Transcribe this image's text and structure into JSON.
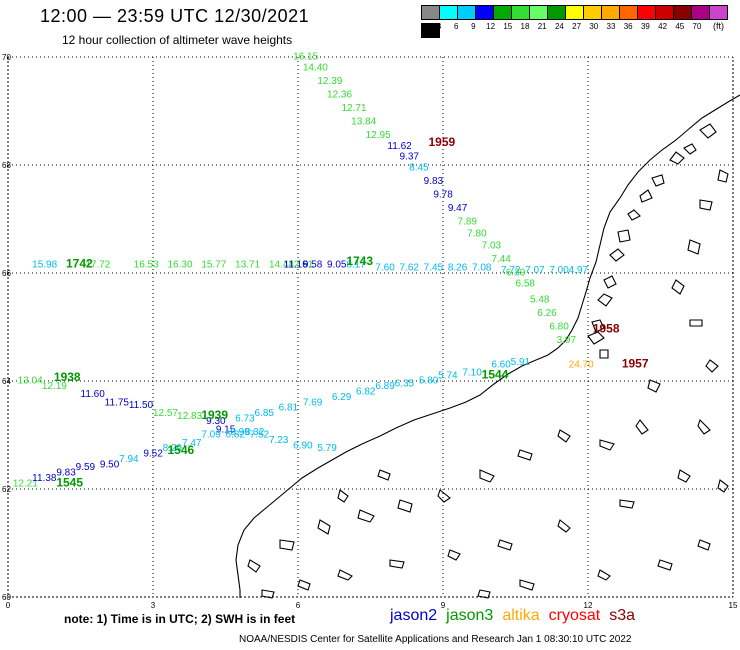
{
  "header": {
    "title": "12:00 — 23:59 UTC 12/30/2021",
    "subtitle": "12 hour collection of altimeter wave heights"
  },
  "legend": {
    "colors": [
      "#888888",
      "#00ffff",
      "#00ccff",
      "#0000ff",
      "#00aa00",
      "#33dd33",
      "#66ff66",
      "#009900",
      "#ffff00",
      "#ffcc00",
      "#ffaa00",
      "#ff6600",
      "#ff0000",
      "#cc0000",
      "#880000",
      "#aa0088",
      "#cc44cc",
      "#000000"
    ],
    "labels": [
      "3",
      "6",
      "9",
      "12",
      "15",
      "18",
      "21",
      "24",
      "27",
      "30",
      "33",
      "36",
      "39",
      "42",
      "45",
      "70"
    ],
    "unit": "(ft)"
  },
  "axes": {
    "x_ticks": [
      "0",
      "3",
      "6",
      "9",
      "12",
      "15"
    ],
    "y_ticks": [
      "70",
      "68",
      "66",
      "64",
      "62",
      "60"
    ],
    "x_range": [
      0,
      15
    ],
    "y_range": [
      60,
      70
    ]
  },
  "tracks": [
    {
      "name": "t1",
      "color": "#33dd33",
      "points": [
        {
          "lon": 5.9,
          "lat": 69.95,
          "v": "16.15"
        },
        {
          "lon": 6.1,
          "lat": 69.75,
          "v": "14.40"
        },
        {
          "lon": 6.4,
          "lat": 69.5,
          "v": "12.39"
        },
        {
          "lon": 6.6,
          "lat": 69.25,
          "v": "12.36"
        },
        {
          "lon": 6.9,
          "lat": 69.0,
          "v": "12.71"
        },
        {
          "lon": 7.1,
          "lat": 68.75,
          "v": "13.84"
        },
        {
          "lon": 7.4,
          "lat": 68.5,
          "v": "12.95"
        },
        {
          "lon": 7.85,
          "lat": 68.3,
          "v": "11.62",
          "c": "#0000cc"
        },
        {
          "lon": 8.1,
          "lat": 68.1,
          "v": "9.37",
          "c": "#0000cc"
        },
        {
          "lon": 8.3,
          "lat": 67.9,
          "v": "8.45",
          "c": "#00bbee"
        },
        {
          "lon": 8.6,
          "lat": 67.65,
          "v": "9.83",
          "c": "#0000cc"
        },
        {
          "lon": 8.8,
          "lat": 67.4,
          "v": "9.78",
          "c": "#0000cc"
        },
        {
          "lon": 9.1,
          "lat": 67.15,
          "v": "9.47",
          "c": "#0000cc"
        },
        {
          "lon": 9.3,
          "lat": 66.9,
          "v": "7.89"
        },
        {
          "lon": 9.5,
          "lat": 66.68,
          "v": "7.80"
        },
        {
          "lon": 9.8,
          "lat": 66.45,
          "v": "7.03"
        },
        {
          "lon": 10.0,
          "lat": 66.2,
          "v": "7.44"
        },
        {
          "lon": 10.3,
          "lat": 65.95,
          "v": "6.39"
        },
        {
          "lon": 10.5,
          "lat": 65.75,
          "v": "6.58"
        },
        {
          "lon": 10.8,
          "lat": 65.45,
          "v": "5.48"
        },
        {
          "lon": 10.95,
          "lat": 65.2,
          "v": "6.26"
        },
        {
          "lon": 11.2,
          "lat": 64.95,
          "v": "6.80"
        },
        {
          "lon": 11.35,
          "lat": 64.7,
          "v": "3.97"
        }
      ],
      "pass": {
        "lon": 8.7,
        "lat": 68.35,
        "v": "1959",
        "c": "#880000"
      }
    },
    {
      "name": "t2",
      "color": "#00bbee",
      "points": [
        {
          "lon": 0.5,
          "lat": 66.1,
          "v": "15.98"
        },
        {
          "lon": 1.6,
          "lat": 66.1,
          "v": "17.72",
          "c": "#33dd33"
        },
        {
          "lon": 2.6,
          "lat": 66.1,
          "v": "16.53",
          "c": "#33dd33"
        },
        {
          "lon": 3.3,
          "lat": 66.1,
          "v": "16.30",
          "c": "#33dd33"
        },
        {
          "lon": 4.0,
          "lat": 66.1,
          "v": "15.77",
          "c": "#33dd33"
        },
        {
          "lon": 4.7,
          "lat": 66.1,
          "v": "13.71",
          "c": "#33dd33"
        },
        {
          "lon": 5.4,
          "lat": 66.1,
          "v": "14.44",
          "c": "#33dd33"
        },
        {
          "lon": 5.8,
          "lat": 66.1,
          "v": "12.51",
          "c": "#33dd33"
        },
        {
          "lon": 5.4,
          "lat": 66.1,
          "v": "11.16",
          "c": "#0000cc",
          "dx": 0.3
        },
        {
          "lon": 6.1,
          "lat": 66.1,
          "v": "9.58",
          "c": "#0000cc"
        },
        {
          "lon": 6.6,
          "lat": 66.1,
          "v": "9.05",
          "c": "#0000cc"
        },
        {
          "lon": 7.0,
          "lat": 66.1,
          "v": "8.17"
        },
        {
          "lon": 7.6,
          "lat": 66.05,
          "v": "7.60"
        },
        {
          "lon": 8.1,
          "lat": 66.05,
          "v": "7.62"
        },
        {
          "lon": 8.6,
          "lat": 66.05,
          "v": "7.45"
        },
        {
          "lon": 9.1,
          "lat": 66.05,
          "v": "8.26"
        },
        {
          "lon": 9.6,
          "lat": 66.05,
          "v": "7.08"
        },
        {
          "lon": 10.2,
          "lat": 66.0,
          "v": "7.72"
        },
        {
          "lon": 10.7,
          "lat": 66.0,
          "v": "7.07"
        },
        {
          "lon": 11.2,
          "lat": 66.0,
          "v": "7.00"
        },
        {
          "lon": 11.6,
          "lat": 66.0,
          "v": "4.97"
        }
      ],
      "pass": {
        "lon": 7.0,
        "lat": 66.15,
        "v": "1743",
        "c": "#009900"
      },
      "pass2": {
        "lon": 1.2,
        "lat": 66.1,
        "v": "1742",
        "c": "#009900"
      }
    },
    {
      "name": "t3",
      "color": "#33dd33",
      "points": [
        {
          "lon": 0.2,
          "lat": 63.95,
          "v": "13.04"
        },
        {
          "lon": 0.7,
          "lat": 63.85,
          "v": "12.19"
        },
        {
          "lon": 1.5,
          "lat": 63.7,
          "v": "11.60",
          "c": "#0000cc"
        },
        {
          "lon": 2.0,
          "lat": 63.55,
          "v": "11.75",
          "c": "#0000cc"
        },
        {
          "lon": 2.5,
          "lat": 63.5,
          "v": "11.50",
          "c": "#0000cc"
        },
        {
          "lon": 3.0,
          "lat": 63.35,
          "v": "12.57"
        },
        {
          "lon": 3.5,
          "lat": 63.3,
          "v": "12.83"
        },
        {
          "lon": 4.1,
          "lat": 63.2,
          "v": "9.30",
          "c": "#0000cc"
        },
        {
          "lon": 4.3,
          "lat": 63.05,
          "v": "9.15",
          "c": "#0000cc"
        },
        {
          "lon": 4.6,
          "lat": 63.0,
          "v": "8.99",
          "c": "#00bbee"
        },
        {
          "lon": 4.9,
          "lat": 63.0,
          "v": "8.32",
          "c": "#00bbee"
        }
      ],
      "pass": {
        "lon": 0.95,
        "lat": 64.0,
        "v": "1938",
        "c": "#009900"
      },
      "pass2": {
        "lon": 4.0,
        "lat": 63.3,
        "v": "1939",
        "c": "#009900"
      }
    },
    {
      "name": "t4",
      "color": "#00bbee",
      "points": [
        {
          "lon": 4.7,
          "lat": 63.25,
          "v": "6.73"
        },
        {
          "lon": 5.1,
          "lat": 63.35,
          "v": "6.85"
        },
        {
          "lon": 5.6,
          "lat": 63.45,
          "v": "6.81"
        },
        {
          "lon": 6.1,
          "lat": 63.55,
          "v": "7.69"
        },
        {
          "lon": 6.7,
          "lat": 63.65,
          "v": "6.29"
        },
        {
          "lon": 7.2,
          "lat": 63.75,
          "v": "6.82"
        },
        {
          "lon": 7.6,
          "lat": 63.85,
          "v": "6.89"
        },
        {
          "lon": 8.0,
          "lat": 63.9,
          "v": "6.35"
        },
        {
          "lon": 8.5,
          "lat": 63.95,
          "v": "5.80"
        },
        {
          "lon": 8.9,
          "lat": 64.05,
          "v": "5.74"
        },
        {
          "lon": 9.4,
          "lat": 64.1,
          "v": "7.10"
        },
        {
          "lon": 10.0,
          "lat": 64.25,
          "v": "6.60"
        },
        {
          "lon": 10.4,
          "lat": 64.3,
          "v": "5.91"
        }
      ],
      "pass": {
        "lon": 9.8,
        "lat": 64.05,
        "v": "1544",
        "c": "#009900"
      }
    },
    {
      "name": "t5",
      "color": "#0000cc",
      "points": [
        {
          "lon": 0.1,
          "lat": 62.05,
          "v": "12.21",
          "c": "#33dd33"
        },
        {
          "lon": 0.5,
          "lat": 62.15,
          "v": "11.38"
        },
        {
          "lon": 1.0,
          "lat": 62.25,
          "v": "9.83"
        },
        {
          "lon": 1.4,
          "lat": 62.35,
          "v": "9.59"
        },
        {
          "lon": 1.9,
          "lat": 62.4,
          "v": "9.50"
        },
        {
          "lon": 2.3,
          "lat": 62.5,
          "v": "7.94",
          "c": "#00bbee"
        },
        {
          "lon": 2.8,
          "lat": 62.6,
          "v": "9.52"
        },
        {
          "lon": 3.2,
          "lat": 62.7,
          "v": "8.29",
          "c": "#00bbee"
        },
        {
          "lon": 3.6,
          "lat": 62.8,
          "v": "7.47",
          "c": "#00bbee"
        },
        {
          "lon": 4.0,
          "lat": 62.95,
          "v": "7.09",
          "c": "#00bbee"
        },
        {
          "lon": 4.5,
          "lat": 62.95,
          "v": "6.82",
          "c": "#00bbee"
        },
        {
          "lon": 5.0,
          "lat": 62.95,
          "v": "7.52",
          "c": "#00bbee"
        },
        {
          "lon": 5.4,
          "lat": 62.85,
          "v": "7.23",
          "c": "#00bbee"
        },
        {
          "lon": 5.9,
          "lat": 62.75,
          "v": "6.90",
          "c": "#00bbee"
        },
        {
          "lon": 6.4,
          "lat": 62.7,
          "v": "5.79",
          "c": "#00bbee"
        }
      ],
      "pass": {
        "lon": 1.0,
        "lat": 62.05,
        "v": "1545",
        "c": "#009900"
      },
      "pass2": {
        "lon": 3.3,
        "lat": 62.65,
        "v": "1546",
        "c": "#009900"
      }
    }
  ],
  "extra_labels": [
    {
      "lon": 12.1,
      "lat": 64.9,
      "v": "1958",
      "c": "#880000",
      "bold": true
    },
    {
      "lon": 12.7,
      "lat": 64.25,
      "v": "1957",
      "c": "#880000",
      "bold": true
    },
    {
      "lon": 11.6,
      "lat": 64.25,
      "v": "24.70",
      "c": "#ffaa00",
      "bold": false
    }
  ],
  "footer": {
    "note": "note: 1) Time is in UTC; 2) SWH is in feet",
    "satellites": [
      {
        "name": "jason2",
        "color": "#0000cc"
      },
      {
        "name": "jason3",
        "color": "#009900"
      },
      {
        "name": "altika",
        "color": "#ffaa00"
      },
      {
        "name": "cryosat",
        "color": "#ff0000"
      },
      {
        "name": "s3a",
        "color": "#880000"
      }
    ],
    "credit": "NOAA/NESDIS Center for Satellite Applications and Research   Jan  1 08:30:10 UTC 2022"
  }
}
